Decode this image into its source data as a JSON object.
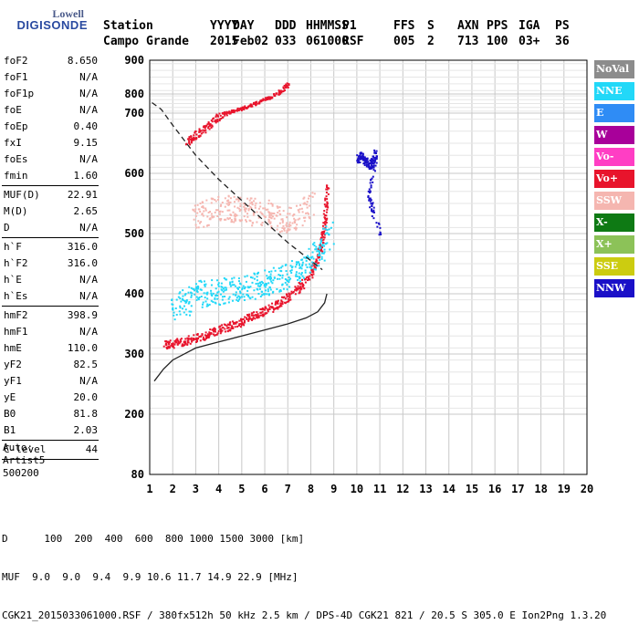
{
  "logo": {
    "line1": "Lowell",
    "line2": "DIGISONDE"
  },
  "header": {
    "row1": [
      "Station",
      "YYYY",
      "DAY",
      "DDD",
      "HHMMSS",
      "P1",
      "FFS",
      "S",
      "AXN",
      "PPS",
      "IGA",
      "PS"
    ],
    "row2": [
      "Campo Grande",
      "2015",
      "Feb02",
      "033",
      "061000",
      "RSF",
      "005",
      "2",
      "713",
      "100",
      "03+",
      "36"
    ]
  },
  "params": [
    {
      "name": "foF2",
      "value": "8.650"
    },
    {
      "name": "foF1",
      "value": "N/A"
    },
    {
      "name": "foF1p",
      "value": "N/A"
    },
    {
      "name": "foE",
      "value": "N/A"
    },
    {
      "name": "foEp",
      "value": "0.40"
    },
    {
      "name": "fxI",
      "value": "9.15"
    },
    {
      "name": "foEs",
      "value": "N/A"
    },
    {
      "name": "fmin",
      "value": "1.60",
      "sep": true
    },
    {
      "name": "MUF(D)",
      "value": "22.91"
    },
    {
      "name": "M(D)",
      "value": "2.65"
    },
    {
      "name": "D",
      "value": "N/A",
      "sep": true
    },
    {
      "name": "h`F",
      "value": "316.0"
    },
    {
      "name": "h`F2",
      "value": "316.0"
    },
    {
      "name": "h`E",
      "value": "N/A"
    },
    {
      "name": "h`Es",
      "value": "N/A",
      "sep": true
    },
    {
      "name": "hmF2",
      "value": "398.9"
    },
    {
      "name": "hmF1",
      "value": "N/A"
    },
    {
      "name": "hmE",
      "value": "110.0"
    },
    {
      "name": "yF2",
      "value": "82.5"
    },
    {
      "name": "yF1",
      "value": "N/A"
    },
    {
      "name": "yE",
      "value": "20.0"
    },
    {
      "name": "B0",
      "value": "81.8"
    },
    {
      "name": "B1",
      "value": "2.03",
      "sep": true
    },
    {
      "name": "C-level",
      "value": "44",
      "sep": true
    }
  ],
  "auto": {
    "line1": "Auto:",
    "line2": "Artist5",
    "line3": "500200"
  },
  "legend": [
    {
      "label": "NoVal",
      "color": "#8c8c8c"
    },
    {
      "label": "NNE",
      "color": "#22d8f8"
    },
    {
      "label": "E",
      "color": "#2f8cf5"
    },
    {
      "label": "W",
      "color": "#a8009a"
    },
    {
      "label": "Vo-",
      "color": "#ff3ec4"
    },
    {
      "label": "Vo+",
      "color": "#e8142c"
    },
    {
      "label": "SSW",
      "color": "#f5b6b0"
    },
    {
      "label": "X-",
      "color": "#0e7a14"
    },
    {
      "label": "X+",
      "color": "#8cc258"
    },
    {
      "label": "SSE",
      "color": "#cccc10"
    },
    {
      "label": "NNW",
      "color": "#1a10c8"
    }
  ],
  "chart_data": {
    "type": "scatter",
    "xlim": [
      1,
      20
    ],
    "ylim": [
      80,
      900
    ],
    "x_ticks": [
      1,
      2,
      3,
      4,
      5,
      6,
      7,
      8,
      9,
      10,
      11,
      12,
      13,
      14,
      15,
      16,
      17,
      18,
      19,
      20
    ],
    "y_ticks": [
      80,
      200,
      300,
      400,
      500,
      600,
      700,
      800,
      900
    ],
    "grid": true,
    "series": [
      {
        "name": "Vo+",
        "color": "#e8142c",
        "kind": "trace",
        "x": [
          1.6,
          2.0,
          2.5,
          3.0,
          3.5,
          4.0,
          4.5,
          5.0,
          5.5,
          6.0,
          6.5,
          7.0,
          7.5,
          8.0,
          8.3,
          8.5,
          8.6,
          8.7
        ],
        "y": [
          316,
          318,
          322,
          328,
          334,
          342,
          348,
          356,
          365,
          373,
          383,
          396,
          412,
          436,
          462,
          495,
          530,
          580
        ]
      },
      {
        "name": "NNE",
        "color": "#22d8f8",
        "kind": "cloud",
        "x": [
          2.0,
          3.0,
          4.0,
          5.0,
          6.0,
          7.0,
          8.0,
          8.8
        ],
        "y": [
          375,
          400,
          405,
          410,
          418,
          430,
          455,
          500
        ]
      },
      {
        "name": "Vo+",
        "color": "#e8142c",
        "kind": "trace",
        "x": [
          2.6,
          3.0,
          3.5,
          4.0,
          4.5,
          5.0,
          5.5,
          6.0,
          6.5,
          7.0
        ],
        "y": [
          655,
          665,
          680,
          695,
          710,
          728,
          750,
          775,
          800,
          830
        ]
      },
      {
        "name": "SSW",
        "color": "#f5b6b0",
        "kind": "cloud",
        "x": [
          3.0,
          4.0,
          5.0,
          6.0,
          7.0,
          8.0
        ],
        "y": [
          530,
          545,
          540,
          535,
          520,
          550
        ]
      },
      {
        "name": "NNW",
        "color": "#1a10c8",
        "kind": "dots",
        "x": [
          10.0,
          10.2,
          10.4,
          10.6,
          10.8,
          10.5,
          11.0
        ],
        "y": [
          625,
          630,
          620,
          615,
          635,
          560,
          500
        ]
      }
    ],
    "lines": [
      {
        "style": "dashed",
        "x": [
          1.1,
          1.5,
          2.0,
          3.0,
          4.0,
          5.0,
          6.0,
          7.0,
          8.0,
          8.5
        ],
        "y": [
          755,
          720,
          680,
          630,
          590,
          555,
          520,
          485,
          455,
          440
        ]
      },
      {
        "style": "solid",
        "x": [
          1.2,
          1.6,
          2.0,
          3.0,
          4.0,
          5.0,
          6.0,
          7.0,
          7.8,
          8.3,
          8.6,
          8.7
        ],
        "y": [
          255,
          275,
          290,
          310,
          320,
          330,
          340,
          350,
          360,
          370,
          385,
          400
        ]
      }
    ]
  },
  "footer": {
    "row1_label": "D",
    "row1_values": "100  200  400  600  800 1000 1500 3000 [km]",
    "row2_label": "MUF",
    "row2_values": "  9.0  9.0  9.4  9.9 10.6 11.7 14.9 22.9 [MHz]",
    "row3": "CGK21_2015033061000.RSF / 380fx512h 50 kHz 2.5 km / DPS-4D CGK21 821 / 20.5 S 305.0 E Ion2Png 1.3.20"
  }
}
